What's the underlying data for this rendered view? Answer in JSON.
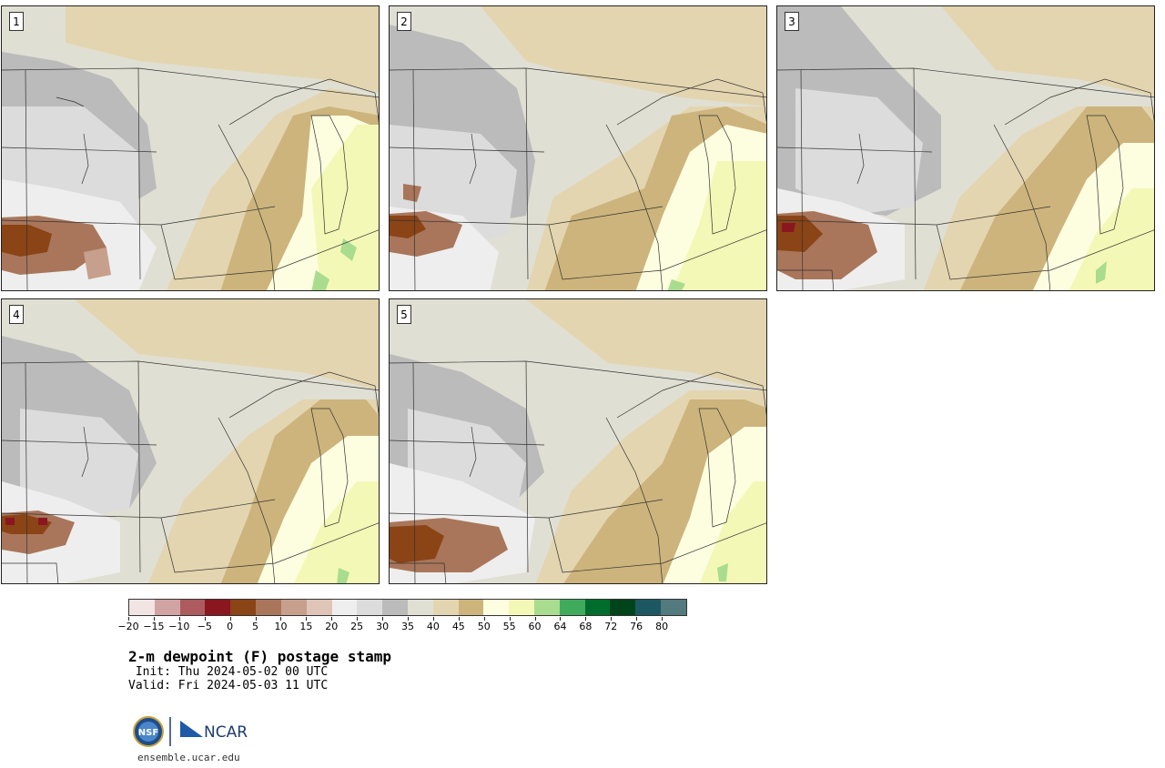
{
  "panels": [
    {
      "number": "1"
    },
    {
      "number": "2"
    },
    {
      "number": "3"
    },
    {
      "number": "4"
    },
    {
      "number": "5"
    }
  ],
  "colorbar": {
    "colors": [
      "#f3e4e4",
      "#d2a3a3",
      "#ad5b5f",
      "#8a1620",
      "#8a4416",
      "#a9765b",
      "#c6a08c",
      "#dfc5b8",
      "#eeeeee",
      "#dcdcdc",
      "#bbbbbb",
      "#e0dfd3",
      "#e3d5b0",
      "#ccb47c",
      "#fdfde0",
      "#f4f8b6",
      "#a9dc8e",
      "#41ab5d",
      "#006d2c",
      "#00441b",
      "#1d5862",
      "#537a7d"
    ],
    "tick_labels": [
      "−20",
      "−15",
      "−10",
      "−5",
      "0",
      "5",
      "10",
      "15",
      "20",
      "25",
      "30",
      "35",
      "40",
      "45",
      "50",
      "55",
      "60",
      "64",
      "68",
      "72",
      "76",
      "80"
    ]
  },
  "caption": {
    "title": "2-m dewpoint (F) postage stamp",
    "init": " Init: Thu 2024-05-02 00 UTC",
    "valid": "Valid: Fri 2024-05-03 11 UTC"
  },
  "logos": {
    "nsf": "NSF",
    "ncar": "NCAR"
  },
  "site": "ensemble.ucar.edu"
}
